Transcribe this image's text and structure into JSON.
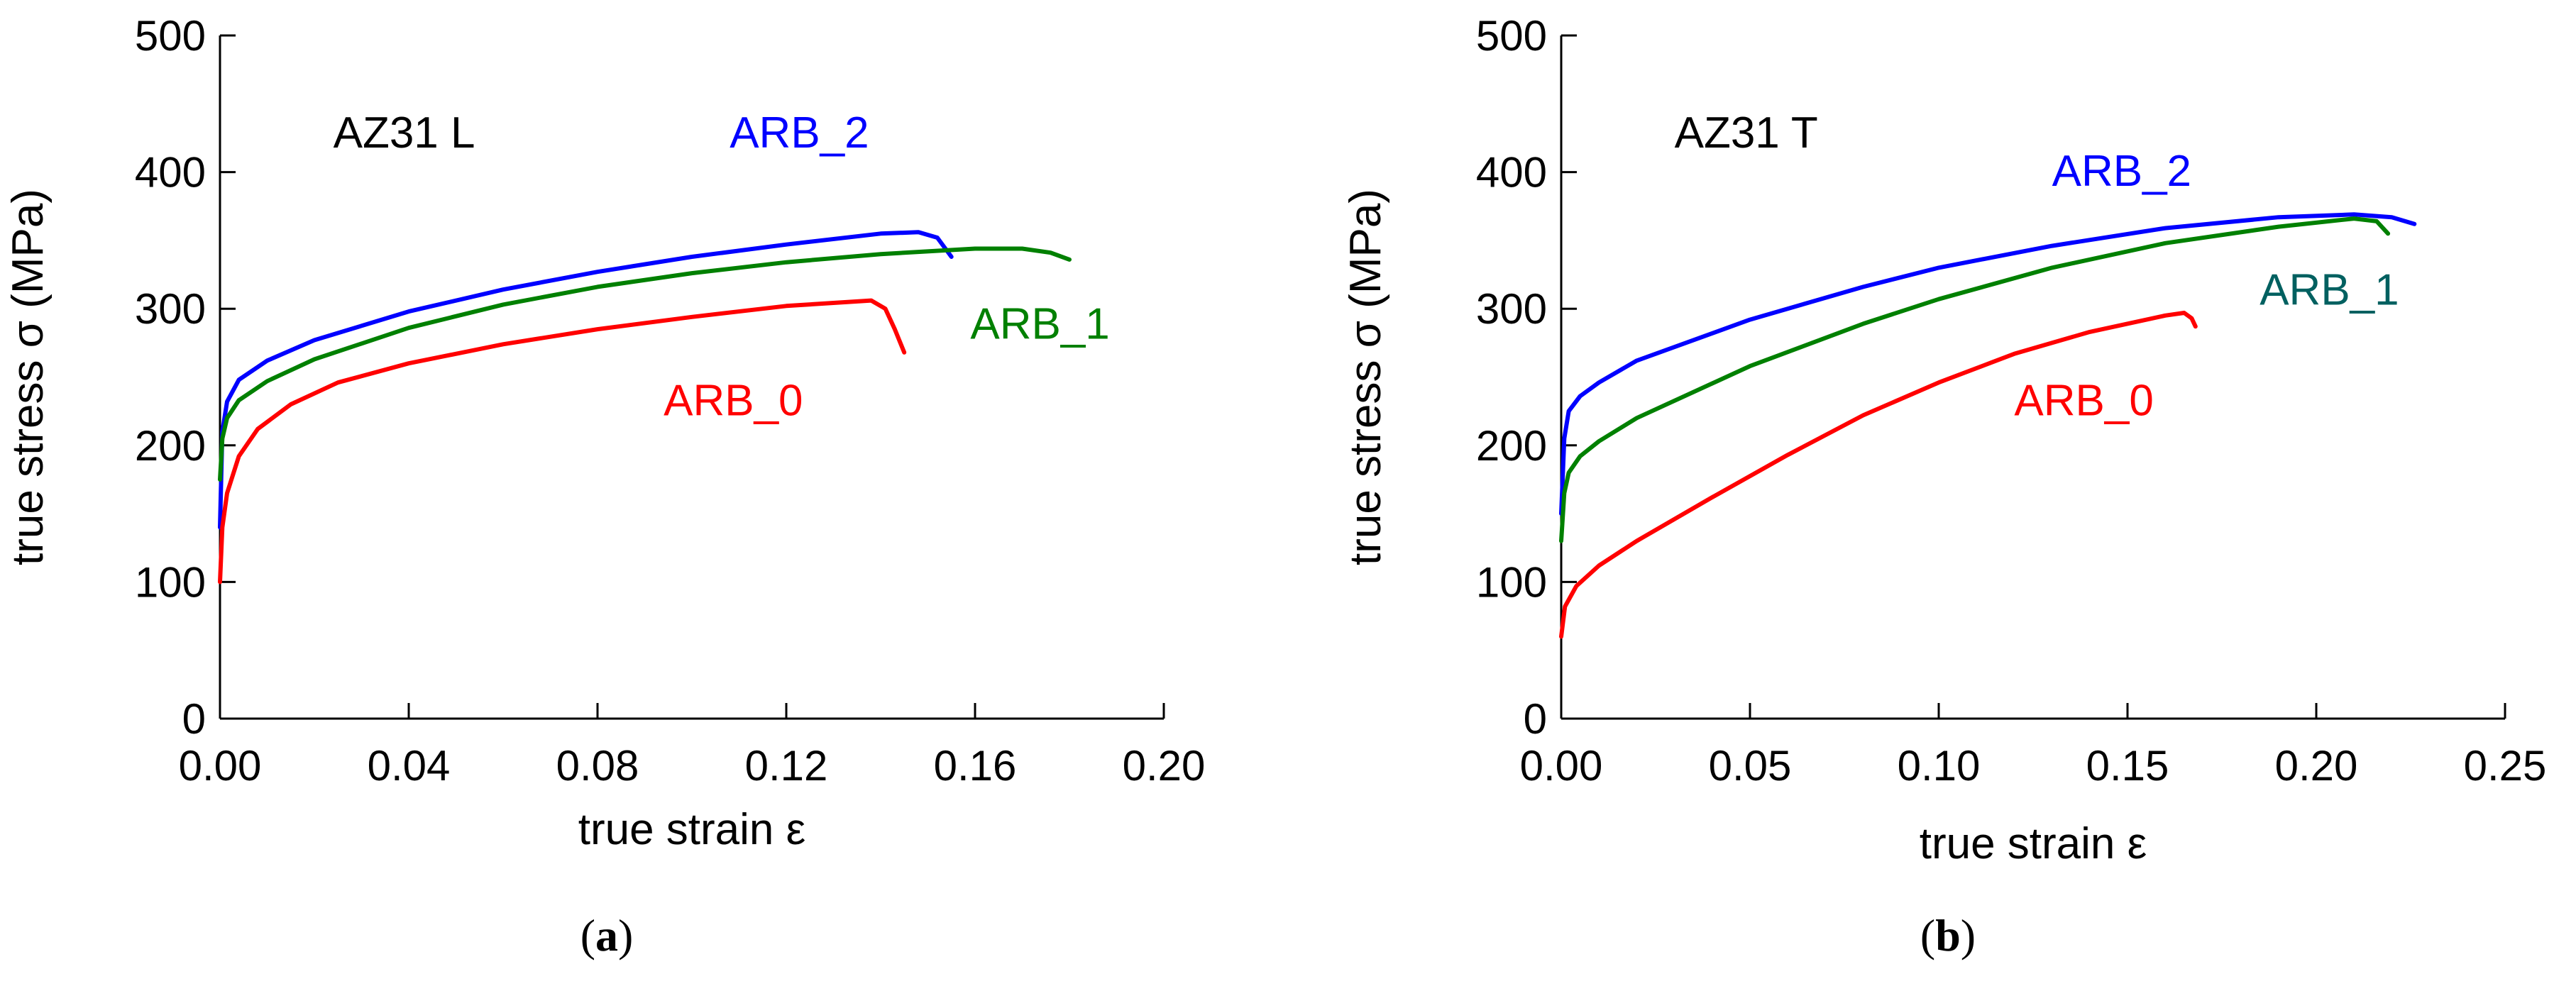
{
  "chart_data": [
    {
      "id": "a",
      "type": "line",
      "panel_label": "(a)",
      "panel_label_parts": [
        "(",
        "a",
        ")"
      ],
      "annotation": "AZ31 L",
      "xlabel": "true strain ε",
      "ylabel": "true stress σ (MPa)",
      "xlim": [
        0,
        0.2
      ],
      "ylim": [
        0,
        500
      ],
      "xticks": [
        0.0,
        0.04,
        0.08,
        0.12,
        0.16,
        0.2
      ],
      "xtick_labels": [
        "0.00",
        "0.04",
        "0.08",
        "0.12",
        "0.16",
        "0.20"
      ],
      "yticks": [
        0,
        100,
        200,
        300,
        400,
        500
      ],
      "ytick_labels": [
        "0",
        "100",
        "200",
        "300",
        "400",
        "500"
      ],
      "grid": false,
      "series": [
        {
          "name": "ARB_2",
          "color": "#0000ff",
          "points": [
            [
              0.0,
              140
            ],
            [
              0.0005,
              210
            ],
            [
              0.0015,
              232
            ],
            [
              0.004,
              248
            ],
            [
              0.01,
              262
            ],
            [
              0.02,
              277
            ],
            [
              0.04,
              298
            ],
            [
              0.06,
              314
            ],
            [
              0.08,
              327
            ],
            [
              0.1,
              338
            ],
            [
              0.12,
              347
            ],
            [
              0.14,
              355
            ],
            [
              0.148,
              356
            ],
            [
              0.152,
              352
            ],
            [
              0.155,
              338
            ]
          ]
        },
        {
          "name": "ARB_1",
          "color": "#008000",
          "points": [
            [
              0.0,
              175
            ],
            [
              0.0005,
              205
            ],
            [
              0.0015,
              220
            ],
            [
              0.004,
              233
            ],
            [
              0.01,
              247
            ],
            [
              0.02,
              263
            ],
            [
              0.04,
              286
            ],
            [
              0.06,
              303
            ],
            [
              0.08,
              316
            ],
            [
              0.1,
              326
            ],
            [
              0.12,
              334
            ],
            [
              0.14,
              340
            ],
            [
              0.16,
              344
            ],
            [
              0.17,
              344
            ],
            [
              0.176,
              341
            ],
            [
              0.18,
              336
            ]
          ]
        },
        {
          "name": "ARB_0",
          "color": "#ff0000",
          "points": [
            [
              0.0,
              100
            ],
            [
              0.0005,
              140
            ],
            [
              0.0015,
              165
            ],
            [
              0.004,
              192
            ],
            [
              0.008,
              212
            ],
            [
              0.015,
              230
            ],
            [
              0.025,
              246
            ],
            [
              0.04,
              260
            ],
            [
              0.06,
              274
            ],
            [
              0.08,
              285
            ],
            [
              0.1,
              294
            ],
            [
              0.12,
              302
            ],
            [
              0.138,
              306
            ],
            [
              0.141,
              300
            ],
            [
              0.143,
              285
            ],
            [
              0.145,
              268
            ]
          ]
        }
      ],
      "labels": [
        {
          "text": "ARB_2",
          "color": "#0000ff",
          "x": 0.108,
          "y": 418
        },
        {
          "text": "ARB_1",
          "color": "#008000",
          "x": 0.159,
          "y": 278
        },
        {
          "text": "ARB_0",
          "color": "#ff0000",
          "x": 0.094,
          "y": 222
        }
      ],
      "annotation_pos": {
        "x": 0.024,
        "y": 418
      }
    },
    {
      "id": "b",
      "type": "line",
      "panel_label": "(b)",
      "panel_label_parts": [
        "(",
        "b",
        ")"
      ],
      "annotation": "AZ31 T",
      "xlabel": "true strain ε",
      "ylabel": "true stress σ (MPa)",
      "xlim": [
        0,
        0.25
      ],
      "ylim": [
        0,
        500
      ],
      "xticks": [
        0.0,
        0.05,
        0.1,
        0.15,
        0.2,
        0.25
      ],
      "xtick_labels": [
        "0.00",
        "0.05",
        "0.10",
        "0.15",
        "0.20",
        "0.25"
      ],
      "yticks": [
        0,
        100,
        200,
        300,
        400,
        500
      ],
      "ytick_labels": [
        "0",
        "100",
        "200",
        "300",
        "400",
        "500"
      ],
      "grid": false,
      "series": [
        {
          "name": "ARB_2",
          "color": "#0000ff",
          "points": [
            [
              0.0,
              150
            ],
            [
              0.0008,
              205
            ],
            [
              0.002,
              225
            ],
            [
              0.005,
              236
            ],
            [
              0.01,
              246
            ],
            [
              0.02,
              262
            ],
            [
              0.05,
              292
            ],
            [
              0.08,
              316
            ],
            [
              0.1,
              330
            ],
            [
              0.13,
              346
            ],
            [
              0.16,
              359
            ],
            [
              0.19,
              367
            ],
            [
              0.21,
              369
            ],
            [
              0.22,
              367
            ],
            [
              0.226,
              362
            ]
          ]
        },
        {
          "name": "ARB_1",
          "color": "#008000",
          "points": [
            [
              0.0,
              130
            ],
            [
              0.0008,
              165
            ],
            [
              0.002,
              180
            ],
            [
              0.005,
              192
            ],
            [
              0.01,
              203
            ],
            [
              0.02,
              220
            ],
            [
              0.05,
              258
            ],
            [
              0.08,
              289
            ],
            [
              0.1,
              307
            ],
            [
              0.13,
              330
            ],
            [
              0.16,
              348
            ],
            [
              0.19,
              360
            ],
            [
              0.21,
              366
            ],
            [
              0.216,
              364
            ],
            [
              0.219,
              355
            ]
          ]
        },
        {
          "name": "ARB_0",
          "color": "#ff0000",
          "points": [
            [
              0.0,
              60
            ],
            [
              0.001,
              82
            ],
            [
              0.004,
              97
            ],
            [
              0.01,
              112
            ],
            [
              0.02,
              130
            ],
            [
              0.04,
              162
            ],
            [
              0.06,
              193
            ],
            [
              0.08,
              222
            ],
            [
              0.1,
              246
            ],
            [
              0.12,
              267
            ],
            [
              0.14,
              283
            ],
            [
              0.16,
              295
            ],
            [
              0.165,
              297
            ],
            [
              0.167,
              293
            ],
            [
              0.168,
              287
            ]
          ]
        }
      ],
      "labels": [
        {
          "text": "ARB_2",
          "color": "#0000ff",
          "x": 0.13,
          "y": 390
        },
        {
          "text": "ARB_1",
          "color": "#006060",
          "x": 0.185,
          "y": 303
        },
        {
          "text": "ARB_0",
          "color": "#ff0000",
          "x": 0.12,
          "y": 222
        }
      ],
      "annotation_pos": {
        "x": 0.03,
        "y": 418
      }
    }
  ]
}
